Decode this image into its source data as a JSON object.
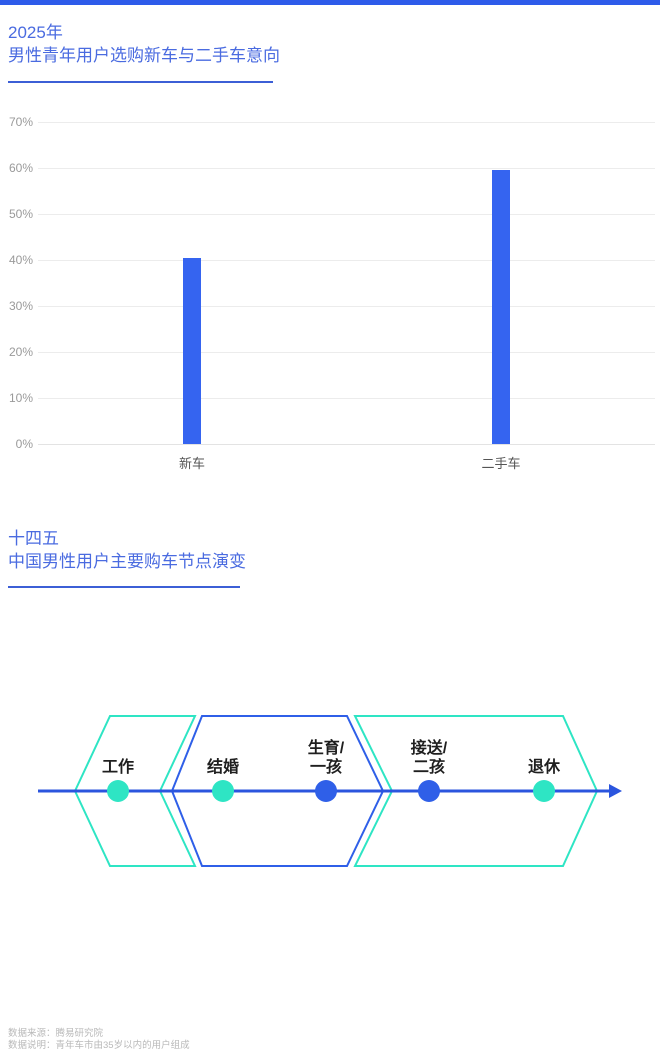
{
  "page": {
    "accent_blue": "#2F5FE8",
    "accent_teal": "#2EE5C4",
    "top_bar_color": "#2E5BEA",
    "title_color": "#4A6BE0",
    "underline_color": "#3C5FD6",
    "timeline_line_color": "#2B55DE"
  },
  "section1": {
    "title_line1": "2025年",
    "title_line2": "男性青年用户选购新车与二手车意向"
  },
  "chart_data": {
    "type": "bar",
    "title": "2025年男性青年用户选购新车与二手车意向",
    "categories": [
      "新车",
      "二手车"
    ],
    "values": [
      40.5,
      59.5
    ],
    "unit": "%",
    "xlabel": "",
    "ylabel": "",
    "ylim": [
      0,
      70
    ],
    "ytick_step": 10,
    "ytick_labels": [
      "0%",
      "10%",
      "20%",
      "30%",
      "40%",
      "50%",
      "60%",
      "70%"
    ],
    "grid": true,
    "legend": false,
    "bar_color": "#3564F0"
  },
  "section2": {
    "title_line1": "十四五",
    "title_line2": "中国男性用户主要购车节点演变"
  },
  "timeline": {
    "nodes": [
      {
        "label": "工作",
        "dot_color": "teal"
      },
      {
        "label": "结婚",
        "dot_color": "teal"
      },
      {
        "label": "生育/\n一孩",
        "dot_color": "blue"
      },
      {
        "label": "接送/\n二孩",
        "dot_color": "blue"
      },
      {
        "label": "退休",
        "dot_color": "teal"
      }
    ]
  },
  "footer": {
    "source": "数据来源：腾易研究院",
    "note": "数据说明：青年车市由35岁以内的用户组成"
  }
}
